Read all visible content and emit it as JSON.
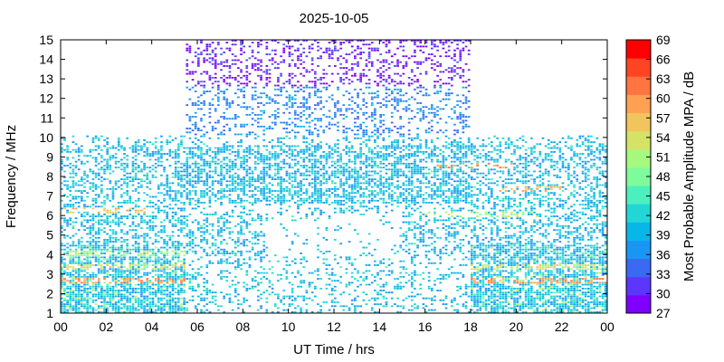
{
  "chart_data": {
    "type": "heatmap",
    "title": "2025-10-05",
    "xlabel": "UT Time / hrs",
    "ylabel": "Frequency / MHz",
    "colorbar_label": "Most Probable Amplitude MPA / dB",
    "xlim": [
      0,
      24
    ],
    "ylim": [
      1,
      15
    ],
    "x_ticks": [
      "00",
      "02",
      "04",
      "06",
      "08",
      "10",
      "12",
      "14",
      "16",
      "18",
      "20",
      "22",
      "00"
    ],
    "y_ticks": [
      "1",
      "2",
      "3",
      "4",
      "5",
      "6",
      "7",
      "8",
      "9",
      "10",
      "11",
      "12",
      "13",
      "14",
      "15"
    ],
    "colorbar_range": [
      27,
      69
    ],
    "colorbar_ticks": [
      "27",
      "30",
      "33",
      "36",
      "39",
      "42",
      "45",
      "48",
      "51",
      "54",
      "57",
      "60",
      "63",
      "66",
      "69"
    ],
    "colorbar_colors": [
      "#7f00ff",
      "#5c36fa",
      "#3a6af2",
      "#1996f3",
      "#08b7e8",
      "#22d6d6",
      "#4cf0be",
      "#7efb9c",
      "#a5f97e",
      "#d6e266",
      "#f2c45e",
      "#ffa052",
      "#ff7440",
      "#ff4424",
      "#ff0000"
    ],
    "grid": false,
    "occupancy": {
      "night_max_mhz": 10,
      "day_max_mhz": 15,
      "day_start_hr": 5.5,
      "day_end_hr": 18,
      "strong_bands_mhz": [
        {
          "from_hr": 0,
          "to_hr": 5.5,
          "mhz": 2.6,
          "db": 63
        },
        {
          "from_hr": 0,
          "to_hr": 5.5,
          "mhz": 3.3,
          "db": 57
        },
        {
          "from_hr": 0,
          "to_hr": 5.5,
          "mhz": 4.0,
          "db": 54
        },
        {
          "from_hr": 0,
          "to_hr": 4,
          "mhz": 6.2,
          "db": 60
        },
        {
          "from_hr": 18,
          "to_hr": 24,
          "mhz": 2.6,
          "db": 63
        },
        {
          "from_hr": 18,
          "to_hr": 24,
          "mhz": 3.3,
          "db": 57
        },
        {
          "from_hr": 16.5,
          "to_hr": 20,
          "mhz": 8.5,
          "db": 63
        },
        {
          "from_hr": 16,
          "to_hr": 21,
          "mhz": 6.0,
          "db": 54
        },
        {
          "from_hr": 19,
          "to_hr": 22,
          "mhz": 7.3,
          "db": 60
        }
      ]
    }
  }
}
